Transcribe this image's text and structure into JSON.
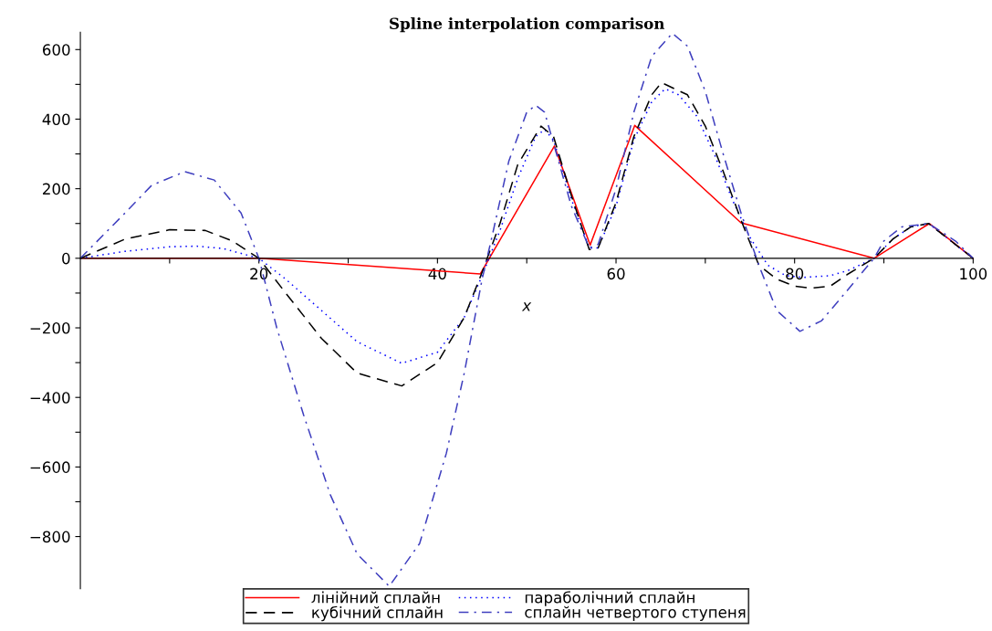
{
  "chart_data": {
    "type": "line",
    "title": "Spline interpolation comparison",
    "xlabel": "x",
    "xlim": [
      0,
      100
    ],
    "ylim": [
      -950,
      650
    ],
    "xticks": [
      {
        "value": 10,
        "label": null
      },
      20,
      {
        "value": 30,
        "label": null
      },
      40,
      {
        "value": 50,
        "label": null
      },
      60,
      {
        "value": 70,
        "label": null
      },
      80,
      {
        "value": 90,
        "label": null
      },
      100
    ],
    "yticks": [
      -800,
      {
        "value": -700,
        "label": null
      },
      -600,
      {
        "value": -500,
        "label": null
      },
      -400,
      {
        "value": -300,
        "label": null
      },
      -200,
      {
        "value": -100,
        "label": null
      },
      0,
      {
        "value": 100,
        "label": null
      },
      200,
      {
        "value": 300,
        "label": null
      },
      400,
      {
        "value": 500,
        "label": null
      },
      600
    ],
    "grid": false,
    "legend": "bottom",
    "series": [
      {
        "name": "лінійний сплайн",
        "color": "#ff0000",
        "line_style": "solid",
        "x": [
          0,
          20,
          44.8,
          53.1,
          57.1,
          62.1,
          74.0,
          88.9,
          95.1,
          100
        ],
        "values": [
          0,
          0,
          -45,
          323,
          38,
          382,
          102,
          0,
          100,
          0
        ]
      },
      {
        "name": "параболічний сплайн",
        "color": "#0000ff",
        "line_style": "dotted",
        "x": [
          0,
          5,
          10,
          13,
          16,
          20,
          23,
          27,
          31,
          36,
          40,
          43,
          45,
          47,
          49,
          51,
          52,
          53,
          55,
          57,
          58,
          60,
          62,
          64,
          65.5,
          67,
          69,
          71,
          73,
          75,
          77,
          79,
          81,
          84,
          86,
          88.9,
          91,
          93,
          95,
          98,
          100
        ],
        "values": [
          0,
          20,
          33,
          35,
          28,
          0,
          -60,
          -150,
          -240,
          -302,
          -270,
          -170,
          -50,
          80,
          230,
          350,
          370,
          340,
          170,
          30,
          30,
          150,
          340,
          450,
          487,
          470,
          410,
          300,
          170,
          60,
          -20,
          -50,
          -55,
          -50,
          -35,
          0,
          55,
          90,
          100,
          40,
          0
        ]
      },
      {
        "name": "кубічний сплайн",
        "color": "#000000",
        "line_style": "dashed",
        "x": [
          0,
          5,
          10,
          14,
          17,
          20,
          23,
          27,
          31,
          36,
          40,
          43,
          45,
          47,
          49,
          51.6,
          53,
          55,
          57,
          58,
          60,
          62,
          64,
          65.1,
          68,
          70,
          72,
          74,
          76,
          78,
          80,
          81.9,
          84,
          86,
          88.9,
          91,
          93,
          95,
          98,
          100
        ],
        "values": [
          0,
          55,
          82,
          80,
          50,
          0,
          -100,
          -230,
          -330,
          -367,
          -300,
          -170,
          -40,
          100,
          270,
          380,
          350,
          180,
          25,
          30,
          160,
          350,
          470,
          505,
          470,
          380,
          250,
          110,
          -20,
          -60,
          -80,
          -86,
          -80,
          -45,
          0,
          55,
          90,
          100,
          40,
          0
        ]
      },
      {
        "name": "сплайн четвертого ступеня",
        "color": "#3f3fbf",
        "line_style": "dashdot",
        "x": [
          0,
          5,
          8,
          11.7,
          15,
          18,
          20,
          22,
          25,
          28,
          31,
          34.6,
          38,
          41,
          43,
          45,
          46,
          48,
          50,
          51,
          52,
          53,
          55,
          57,
          58,
          60,
          62,
          64,
          66.3,
          68,
          70,
          72,
          74,
          76,
          78,
          80.6,
          83,
          85,
          88.9,
          90,
          92,
          95,
          98,
          100
        ],
        "values": [
          0,
          130,
          210,
          249,
          225,
          130,
          0,
          -200,
          -450,
          -680,
          -850,
          -943,
          -820,
          -560,
          -330,
          -60,
          50,
          280,
          420,
          440,
          420,
          330,
          150,
          30,
          40,
          200,
          420,
          580,
          647,
          610,
          480,
          300,
          130,
          -20,
          -150,
          -210,
          -180,
          -120,
          0,
          50,
          90,
          100,
          50,
          0
        ]
      }
    ]
  }
}
